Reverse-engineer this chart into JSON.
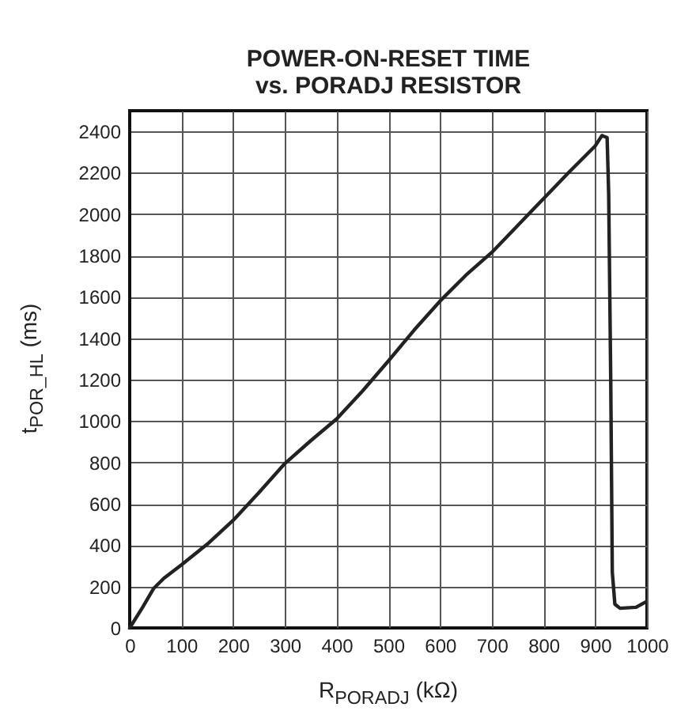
{
  "chart_data": {
    "type": "line",
    "title": "POWER-ON-RESET TIME\nvs. PORADJ RESISTOR",
    "xlabel": "R$_{PORADJ}$ (kΩ)",
    "ylabel": "t$_{POR_HL}$ (ms)",
    "xlim": [
      0,
      1000
    ],
    "ylim": [
      0,
      2500
    ],
    "xticks": [
      0,
      100,
      200,
      300,
      400,
      500,
      600,
      700,
      800,
      900,
      1000
    ],
    "yticks": [
      0,
      200,
      400,
      600,
      800,
      1000,
      1200,
      1400,
      1600,
      1800,
      2000,
      2200,
      2400
    ],
    "grid": true,
    "line_style": "solid",
    "series": [
      {
        "color": "#222222",
        "x": [
          0,
          25,
          46,
          66,
          100,
          150,
          200,
          250,
          300,
          350,
          400,
          450,
          500,
          550,
          600,
          650,
          700,
          750,
          800,
          850,
          900,
          913,
          923,
          926,
          930,
          933,
          938,
          948,
          979,
          997
        ],
        "values": [
          0,
          100,
          190,
          240,
          305,
          405,
          520,
          655,
          795,
          905,
          1010,
          1145,
          1290,
          1440,
          1580,
          1705,
          1815,
          1945,
          2075,
          2205,
          2330,
          2380,
          2370,
          2100,
          1200,
          270,
          115,
          95,
          100,
          125
        ]
      }
    ]
  }
}
